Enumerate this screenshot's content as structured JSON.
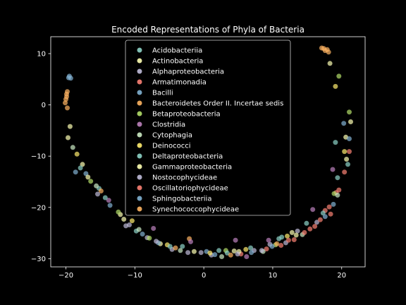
{
  "chart_data": {
    "type": "scatter",
    "title": "Encoded Representations of Phyla of Bacteria",
    "xlabel": "",
    "ylabel": "",
    "xlim": [
      -22.2,
      23.4
    ],
    "ylim": [
      -31.6,
      13.3
    ],
    "xticks": [
      -20,
      -10,
      0,
      10,
      20
    ],
    "yticks": [
      -30,
      -20,
      -10,
      0,
      10
    ],
    "xtick_labels": [
      "−20",
      "−10",
      "0",
      "10",
      "20"
    ],
    "ytick_labels": [
      "−30",
      "−20",
      "−10",
      "0",
      "10"
    ],
    "grid": false,
    "legend_position": "upper center",
    "background": "#000000",
    "series": [
      {
        "name": "Acidobacteriia",
        "color": "#8dd3c7",
        "points": [
          [
            -15.2,
            -16.3
          ],
          [
            -3.1,
            -27.6
          ],
          [
            6.8,
            -27.9
          ],
          [
            14.9,
            -23.1
          ],
          [
            19.4,
            -14.2
          ],
          [
            -9.8,
            -24.6
          ],
          [
            2.2,
            -28.4
          ],
          [
            11.3,
            -25.8
          ]
        ]
      },
      {
        "name": "Actinobacteria",
        "color": "#feffb3",
        "points": [
          [
            -19.4,
            -4.2
          ],
          [
            -17.6,
            -11.6
          ],
          [
            -6.3,
            -27.1
          ],
          [
            4.4,
            -28.5
          ],
          [
            12.8,
            -24.9
          ],
          [
            20.6,
            -6.3
          ],
          [
            18.3,
            8.1
          ],
          [
            -12.1,
            -21.4
          ]
        ]
      },
      {
        "name": "Alphaproteobacteria",
        "color": "#bfbbd9",
        "points": [
          [
            -11.3,
            -23.6
          ],
          [
            -4.6,
            -28.2
          ],
          [
            1.1,
            -29.3
          ],
          [
            7.3,
            -28.4
          ],
          [
            13.6,
            -24.6
          ],
          [
            -8.2,
            -25.9
          ],
          [
            9.6,
            -27.2
          ],
          [
            -2.3,
            -28.8
          ]
        ]
      },
      {
        "name": "Armatimonadia",
        "color": "#fa8174",
        "points": [
          [
            15.4,
            -24.2
          ],
          [
            17.6,
            -20.6
          ],
          [
            19.2,
            -17.1
          ],
          [
            13.1,
            -26.3
          ],
          [
            9.1,
            -28.1
          ],
          [
            5.4,
            -29.1
          ],
          [
            18.4,
            -21.3
          ],
          [
            11.2,
            -27.4
          ]
        ]
      },
      {
        "name": "Bacilli",
        "color": "#81b1d2",
        "points": [
          [
            -19.6,
            5.3
          ],
          [
            -17.1,
            -13.4
          ],
          [
            -13.6,
            -19.6
          ],
          [
            0.4,
            -28.6
          ],
          [
            6.9,
            -28.8
          ],
          [
            18.8,
            -19.4
          ],
          [
            20.3,
            -3.6
          ],
          [
            -6.6,
            -26.9
          ]
        ]
      },
      {
        "name": "Bacteroidetes Order II. Incertae sedis",
        "color": "#fdb462",
        "points": [
          [
            -20.1,
            0.4
          ],
          [
            -19.8,
            2.6
          ],
          [
            -19.9,
            1.6
          ],
          [
            17.4,
            11.0
          ],
          [
            18.1,
            10.3
          ],
          [
            17.9,
            10.8
          ],
          [
            -14.9,
            -16.8
          ],
          [
            -2.1,
            -26.1
          ]
        ]
      },
      {
        "name": "Betaproteobacteria",
        "color": "#b3de69",
        "points": [
          [
            -16.4,
            -14.9
          ],
          [
            -7.9,
            -26.0
          ],
          [
            3.2,
            -28.4
          ],
          [
            10.4,
            -27.3
          ],
          [
            18.9,
            -17.3
          ],
          [
            21.1,
            -1.4
          ],
          [
            19.6,
            5.6
          ],
          [
            -12.4,
            -20.9
          ]
        ]
      },
      {
        "name": "Clostridia",
        "color": "#bc82bd",
        "points": [
          [
            -7.3,
            -24.1
          ],
          [
            -1.9,
            -26.7
          ],
          [
            4.6,
            -26.4
          ],
          [
            9.4,
            -26.4
          ],
          [
            15.8,
            -20.4
          ],
          [
            18.7,
            -12.6
          ],
          [
            -13.8,
            -18.6
          ],
          [
            6.2,
            -29.6
          ]
        ]
      },
      {
        "name": "Cytophagia",
        "color": "#ccebc4",
        "points": [
          [
            -19.0,
            -8.3
          ],
          [
            -15.6,
            -15.8
          ],
          [
            -9.4,
            -24.3
          ],
          [
            -3.4,
            -28.4
          ],
          [
            2.6,
            -29.6
          ],
          [
            8.6,
            -28.6
          ],
          [
            14.3,
            -25.3
          ],
          [
            19.4,
            -17.6
          ]
        ]
      },
      {
        "name": "Deinococci",
        "color": "#ffed6f",
        "points": [
          [
            -18.4,
            -9.6
          ],
          [
            -10.4,
            -22.6
          ],
          [
            -5.3,
            -27.3
          ],
          [
            0.9,
            -28.9
          ],
          [
            6.1,
            -28.2
          ],
          [
            12.1,
            -25.6
          ],
          [
            20.4,
            -9.1
          ],
          [
            19.1,
            3.6
          ]
        ]
      },
      {
        "name": "Deltaproteobacteria",
        "color": "#8dd3c7",
        "points": [
          [
            -17.9,
            -12.3
          ],
          [
            -14.3,
            -18.1
          ],
          [
            -4.9,
            -27.6
          ],
          [
            3.4,
            -28.9
          ],
          [
            10.9,
            -26.1
          ],
          [
            17.3,
            -21.1
          ],
          [
            20.9,
            -11.6
          ],
          [
            19.1,
            -7.3
          ]
        ]
      },
      {
        "name": "Gammaproteobacteria",
        "color": "#feffb3",
        "points": [
          [
            -19.7,
            -6.4
          ],
          [
            -16.8,
            -14.1
          ],
          [
            -11.6,
            -22.3
          ],
          [
            -1.4,
            -28.6
          ],
          [
            5.1,
            -28.6
          ],
          [
            13.4,
            -25.4
          ],
          [
            20.7,
            -10.6
          ],
          [
            21.3,
            -3.3
          ]
        ]
      },
      {
        "name": "Nostocophycideae",
        "color": "#bfbbd9",
        "points": [
          [
            -10.8,
            -23.4
          ],
          [
            -6.9,
            -26.6
          ],
          [
            -0.4,
            -28.8
          ],
          [
            4.9,
            -29.1
          ],
          [
            8.4,
            -28.4
          ],
          [
            11.9,
            -26.9
          ],
          [
            16.4,
            -22.9
          ],
          [
            -15.4,
            -17.4
          ]
        ]
      },
      {
        "name": "Oscillatoriophycideae",
        "color": "#fa8174",
        "points": [
          [
            14.6,
            -24.9
          ],
          [
            16.9,
            -22.4
          ],
          [
            18.2,
            -19.9
          ],
          [
            19.6,
            -16.6
          ],
          [
            20.4,
            -13.1
          ],
          [
            21.1,
            -9.1
          ],
          [
            12.3,
            -26.4
          ],
          [
            16.1,
            -23.7
          ]
        ]
      },
      {
        "name": "Sphingobacteriia",
        "color": "#81b1d2",
        "points": [
          [
            -19.5,
            5.6
          ],
          [
            -19.3,
            5.2
          ],
          [
            -18.6,
            -13.1
          ],
          [
            -8.9,
            -25.2
          ],
          [
            1.6,
            -29.2
          ],
          [
            9.9,
            -27.6
          ],
          [
            17.6,
            -21.8
          ],
          [
            21.1,
            -6.6
          ]
        ]
      },
      {
        "name": "Synechococcophycideae",
        "color": "#fdb462",
        "points": [
          [
            -20.0,
            1.1
          ],
          [
            -19.9,
            2.1
          ],
          [
            -19.8,
            -0.6
          ],
          [
            17.6,
            10.6
          ],
          [
            17.1,
            11.1
          ],
          [
            -4.1,
            -27.9
          ],
          [
            3.9,
            -29.3
          ],
          [
            10.6,
            -27.1
          ]
        ]
      }
    ]
  }
}
